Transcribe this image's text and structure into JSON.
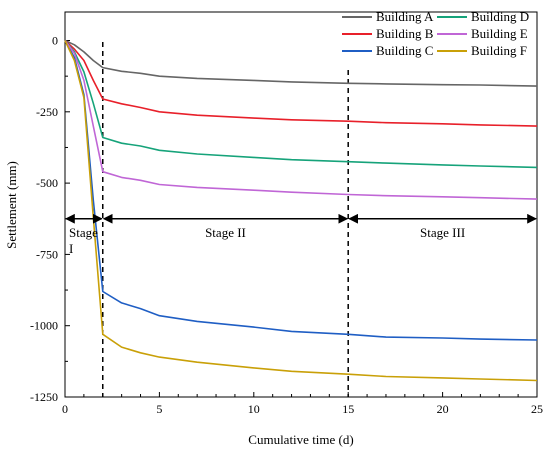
{
  "chart_data": {
    "type": "line",
    "title": "",
    "xlabel": "Cumulative time (d)",
    "ylabel": "Settlement (mm)",
    "xlim": [
      0,
      25
    ],
    "ylim": [
      -1250,
      100
    ],
    "xticks": [
      0,
      5,
      10,
      15,
      20,
      25
    ],
    "yticks": [
      0,
      -250,
      -500,
      -750,
      -1000,
      -1250
    ],
    "xtick_labels": [
      "0",
      "5",
      "10",
      "15",
      "20",
      "25"
    ],
    "ytick_labels": [
      "0",
      "-250",
      "-500",
      "-750",
      "-1000",
      "-1250"
    ],
    "grid": false,
    "legend_position": "top-right",
    "series": [
      {
        "name": "Building A",
        "color": "#666666",
        "x": [
          0,
          0.5,
          1,
          1.5,
          2,
          3,
          4,
          5,
          7,
          10,
          12,
          15,
          17,
          20,
          22,
          25
        ],
        "y": [
          0,
          -15,
          -40,
          -70,
          -95,
          -108,
          -115,
          -125,
          -133,
          -140,
          -145,
          -150,
          -152,
          -155,
          -156,
          -160
        ]
      },
      {
        "name": "Building B",
        "color": "#e8202a",
        "x": [
          0,
          0.5,
          1,
          1.5,
          2,
          3,
          4,
          5,
          7,
          10,
          12,
          15,
          17,
          20,
          22,
          25
        ],
        "y": [
          0,
          -30,
          -70,
          -140,
          -205,
          -222,
          -235,
          -250,
          -262,
          -272,
          -278,
          -283,
          -288,
          -292,
          -296,
          -300
        ]
      },
      {
        "name": "Building C",
        "color": "#1f5ec4",
        "x": [
          0,
          0.5,
          1,
          1.5,
          2,
          3,
          4,
          5,
          7,
          10,
          12,
          15,
          17,
          20,
          22,
          25
        ],
        "y": [
          0,
          -60,
          -190,
          -560,
          -880,
          -920,
          -940,
          -965,
          -985,
          -1005,
          -1020,
          -1030,
          -1040,
          -1043,
          -1047,
          -1050
        ]
      },
      {
        "name": "Building D",
        "color": "#16a37a",
        "x": [
          0,
          0.5,
          1,
          1.5,
          2,
          3,
          4,
          5,
          7,
          10,
          12,
          15,
          17,
          20,
          22,
          25
        ],
        "y": [
          0,
          -40,
          -110,
          -220,
          -340,
          -360,
          -370,
          -385,
          -398,
          -410,
          -418,
          -425,
          -430,
          -436,
          -440,
          -445
        ]
      },
      {
        "name": "Building E",
        "color": "#c066d6",
        "x": [
          0,
          0.5,
          1,
          1.5,
          2,
          3,
          4,
          5,
          7,
          10,
          12,
          15,
          17,
          20,
          22,
          25
        ],
        "y": [
          0,
          -45,
          -140,
          -300,
          -460,
          -480,
          -490,
          -505,
          -515,
          -525,
          -532,
          -540,
          -544,
          -548,
          -551,
          -556
        ]
      },
      {
        "name": "Building F",
        "color": "#c9a008",
        "x": [
          0,
          0.5,
          1,
          1.5,
          2,
          3,
          4,
          5,
          7,
          10,
          12,
          15,
          17,
          20,
          22,
          25
        ],
        "y": [
          0,
          -70,
          -200,
          -620,
          -1030,
          -1075,
          -1095,
          -1110,
          -1128,
          -1148,
          -1160,
          -1170,
          -1178,
          -1183,
          -1187,
          -1192
        ]
      }
    ],
    "vlines": [
      2,
      15
    ],
    "stages": [
      {
        "label": "Stage I",
        "x_start": 0,
        "x_end": 2
      },
      {
        "label": "Stage II",
        "x_start": 2,
        "x_end": 15
      },
      {
        "label": "Stage III",
        "x_start": 15,
        "x_end": 25
      }
    ],
    "stage_arrow_y": -625
  }
}
